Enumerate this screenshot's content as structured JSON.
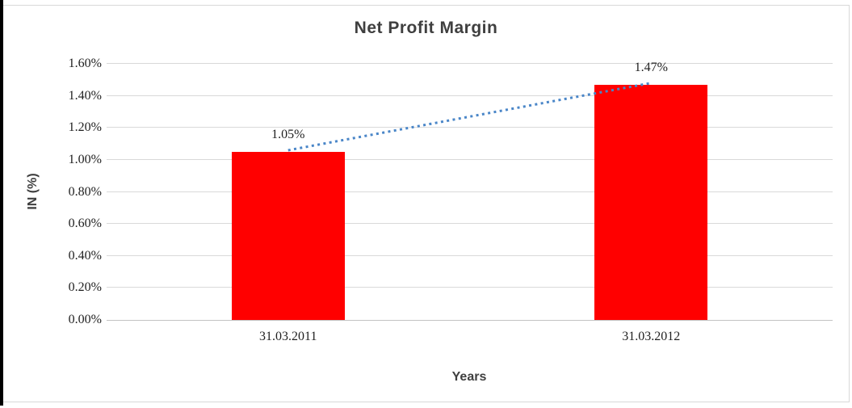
{
  "chart_data": {
    "type": "bar",
    "title": "Net Profit Margin",
    "xlabel": "Years",
    "ylabel": "IN (%)",
    "categories": [
      "31.03.2011",
      "31.03.2012"
    ],
    "series": [
      {
        "name": "Net Profit Margin",
        "values": [
          1.05,
          1.47
        ]
      }
    ],
    "data_labels": [
      "1.05%",
      "1.47%"
    ],
    "y_ticks": [
      0.0,
      0.2,
      0.4,
      0.6,
      0.8,
      1.0,
      1.2,
      1.4,
      1.6
    ],
    "y_tick_labels": [
      "0.00%",
      "0.20%",
      "0.40%",
      "0.60%",
      "0.80%",
      "1.00%",
      "1.20%",
      "1.40%",
      "1.60%"
    ],
    "ylim": [
      0,
      1.6
    ],
    "grid": true,
    "legend": "none",
    "bar_color": "#ff0000",
    "trendline": {
      "type": "linear",
      "style": "dotted",
      "color": "#4a86c8",
      "start_value": 1.05,
      "end_value": 1.47
    }
  },
  "colors": {
    "gridline": "#d9d9d9",
    "axis_line": "#c3c3c3",
    "title_text": "#3f3f3f",
    "tick_text": "#1f1f1f",
    "frame_border": "#d9d9d9",
    "left_edge": "#000000"
  }
}
